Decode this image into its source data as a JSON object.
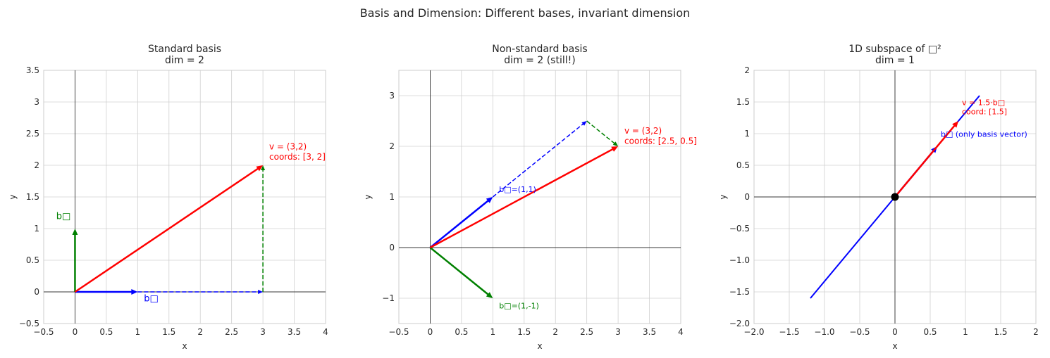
{
  "title": "Basis and Dimension: Different bases, invariant dimension",
  "chart_data": [
    {
      "type": "vector",
      "title": [
        "Standard basis",
        "dim = 2"
      ],
      "xlabel": "x",
      "ylabel": "y",
      "xlim": [
        -0.5,
        4
      ],
      "ylim": [
        -0.5,
        3.5
      ],
      "grid": true,
      "xticks": [
        {
          "value": -0.5,
          "label": "−0.5"
        },
        0.0,
        0.5,
        1.0,
        1.5,
        2.0,
        2.5,
        3.0,
        3.5,
        4.0
      ],
      "yticks": [
        {
          "value": -0.5,
          "label": "−0.5"
        },
        0.0,
        0.5,
        1.0,
        1.5,
        2.0,
        2.5,
        3.0,
        3.5
      ],
      "vectors": [
        {
          "x": [
            1,
            3
          ],
          "y": [
            0,
            0
          ],
          "color": "#0000ff",
          "dashed": true,
          "arrow": true
        },
        {
          "x": [
            3,
            3
          ],
          "y": [
            0,
            2
          ],
          "color": "#008000",
          "dashed": true,
          "arrow": true
        },
        {
          "x": [
            0,
            1
          ],
          "y": [
            0,
            0
          ],
          "color": "#0000ff",
          "dashed": false,
          "arrow": true
        },
        {
          "x": [
            0,
            0
          ],
          "y": [
            0,
            1
          ],
          "color": "#008000",
          "dashed": false,
          "arrow": true
        },
        {
          "x": [
            0,
            3
          ],
          "y": [
            0,
            2
          ],
          "color": "#ff0000",
          "dashed": false,
          "arrow": true
        }
      ],
      "annotations": [
        {
          "lines": [
            "b□"
          ],
          "color": "#0000ff"
        },
        {
          "lines": [
            "b□"
          ],
          "color": "#008000"
        },
        {
          "lines": [
            "v = (3,2)",
            "coords: [3, 2]"
          ],
          "color": "#ff0000"
        }
      ]
    },
    {
      "type": "vector",
      "title": [
        "Non-standard basis",
        "dim = 2 (still!)"
      ],
      "xlabel": "x",
      "ylabel": "y",
      "xlim": [
        -0.5,
        4
      ],
      "ylim": [
        -1.5,
        3.5
      ],
      "grid": true,
      "xticks": [
        {
          "value": -0.5,
          "label": "−0.5"
        },
        0.0,
        0.5,
        1.0,
        1.5,
        2.0,
        2.5,
        3.0,
        3.5,
        4.0
      ],
      "yticks": [
        {
          "value": -1,
          "label": "−1"
        },
        0,
        1,
        2,
        3
      ],
      "vectors": [
        {
          "x": [
            1,
            2.5
          ],
          "y": [
            1,
            2.5
          ],
          "color": "#0000ff",
          "dashed": true,
          "arrow": true
        },
        {
          "x": [
            2.5,
            3
          ],
          "y": [
            2.5,
            2
          ],
          "color": "#008000",
          "dashed": true,
          "arrow": true
        },
        {
          "x": [
            0,
            1
          ],
          "y": [
            0,
            1
          ],
          "color": "#0000ff",
          "dashed": false,
          "arrow": true
        },
        {
          "x": [
            0,
            1
          ],
          "y": [
            0,
            -1
          ],
          "color": "#008000",
          "dashed": false,
          "arrow": true
        },
        {
          "x": [
            0,
            3
          ],
          "y": [
            0,
            2
          ],
          "color": "#ff0000",
          "dashed": false,
          "arrow": true
        }
      ],
      "annotations": [
        {
          "lines": [
            "b□=(1,1)"
          ],
          "color": "#0000ff"
        },
        {
          "lines": [
            "b□=(1,-1)"
          ],
          "color": "#008000"
        },
        {
          "lines": [
            "v = (3,2)",
            "coords: [2.5, 0.5]"
          ],
          "color": "#ff0000"
        }
      ]
    },
    {
      "type": "vector",
      "title": [
        "1D subspace of □²",
        "dim = 1"
      ],
      "xlabel": "x",
      "ylabel": "y",
      "xlim": [
        -2,
        2
      ],
      "ylim": [
        -2,
        2
      ],
      "grid": true,
      "xticks": [
        {
          "value": -2,
          "label": "−2.0"
        },
        {
          "value": -1.5,
          "label": "−1.5"
        },
        {
          "value": -1,
          "label": "−1.0"
        },
        {
          "value": -0.5,
          "label": "−0.5"
        },
        0.0,
        0.5,
        1.0,
        1.5,
        2.0
      ],
      "yticks": [
        {
          "value": -2,
          "label": "−2.0"
        },
        {
          "value": -1.5,
          "label": "−1.5"
        },
        {
          "value": -1,
          "label": "−1.0"
        },
        {
          "value": -0.5,
          "label": "−0.5"
        },
        0.0,
        0.5,
        1.0,
        1.5,
        2.0
      ],
      "vectors": [
        {
          "x": [
            -1.2,
            1.2
          ],
          "y": [
            -1.6,
            1.6
          ],
          "color": "#0000ff",
          "dashed": false,
          "arrow": false
        },
        {
          "x": [
            0,
            0.6
          ],
          "y": [
            0,
            0.8
          ],
          "color": "#0000ff",
          "dashed": false,
          "arrow": true
        },
        {
          "x": [
            0,
            0.9
          ],
          "y": [
            0,
            1.2
          ],
          "color": "#ff0000",
          "dashed": false,
          "arrow": true
        }
      ],
      "points": {
        "x": [
          0
        ],
        "y": [
          0
        ],
        "color": "#000000"
      },
      "annotations": [
        {
          "lines": [
            "v = 1.5·b□",
            "coord: [1.5]"
          ],
          "color": "#ff0000"
        },
        {
          "lines": [
            "b□ (only basis vector)"
          ],
          "color": "#0000ff"
        }
      ]
    }
  ]
}
